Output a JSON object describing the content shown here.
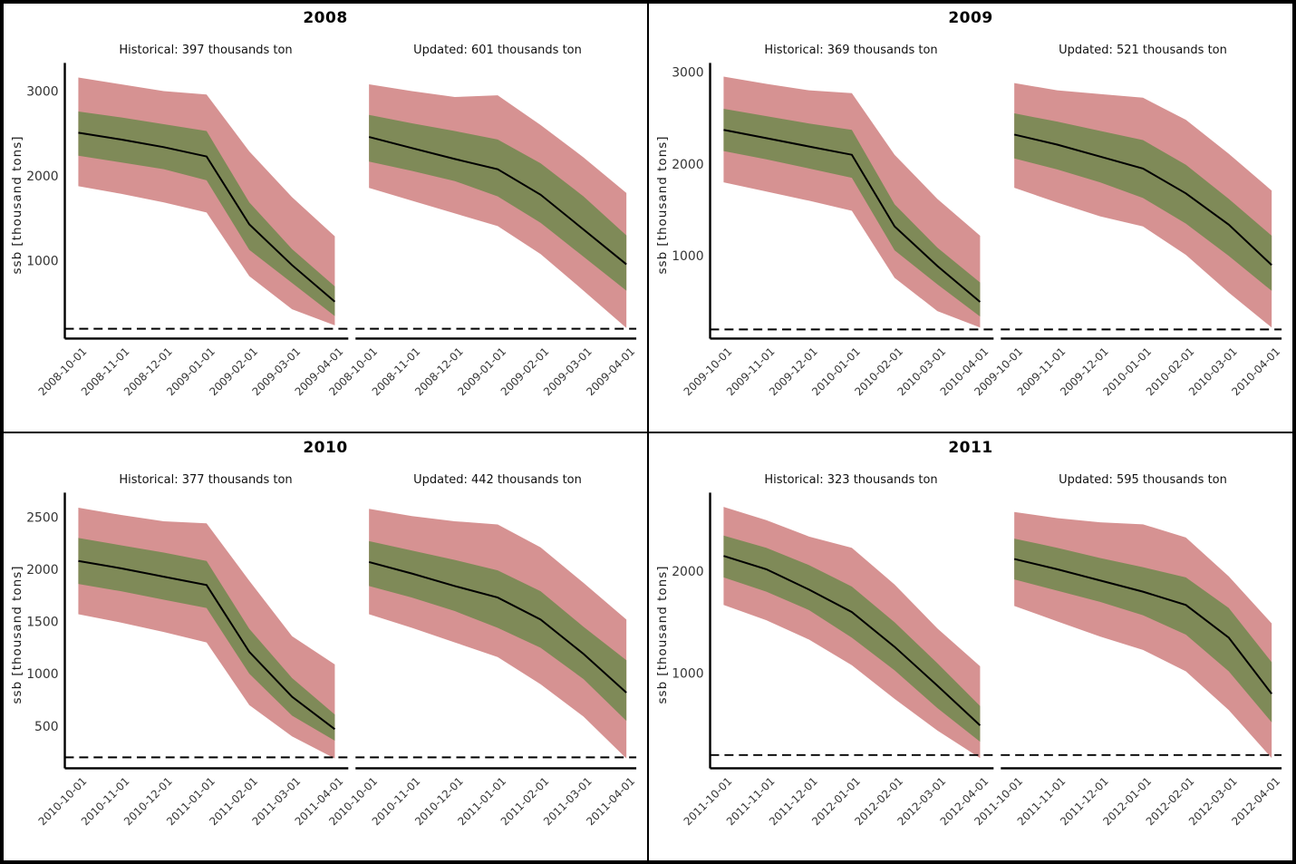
{
  "chart_data": {
    "type": "area",
    "description": "2x2 grid of seasonal ssb forecast fan charts, each year with Historical and Updated scenarios; black median line, inner olive credible band, outer pink credible band, dashed horizontal reference line",
    "ylabel": "ssb [thousand tons]",
    "legend_position": "none",
    "grid": false,
    "colors": {
      "outer_band": "#D69292",
      "inner_band": "#7F8A58",
      "median_line": "#000000",
      "reference_line": "#000000",
      "tick_text": "#333333",
      "title_text": "#000000"
    },
    "reference_line_value": 200,
    "panels": [
      {
        "year": "2008",
        "yticks": [
          1000,
          2000,
          3000
        ],
        "ylim": [
          85,
          3290
        ],
        "charts": [
          {
            "title": "Historical: 397 thousands ton",
            "x": [
              "2008-10-01",
              "2008-11-01",
              "2008-12-01",
              "2009-01-01",
              "2009-02-01",
              "2009-03-01",
              "2009-04-01"
            ],
            "median": [
              2510,
              2430,
              2340,
              2230,
              1430,
              950,
              520
            ],
            "inner_hi": [
              2760,
              2690,
              2610,
              2530,
              1690,
              1140,
              700
            ],
            "inner_lo": [
              2240,
              2160,
              2080,
              1950,
              1130,
              740,
              350
            ],
            "outer_hi": [
              3160,
              3080,
              3000,
              2960,
              2290,
              1750,
              1290
            ],
            "outer_lo": [
              1880,
              1790,
              1690,
              1570,
              820,
              430,
              240
            ]
          },
          {
            "title": "Updated: 601 thousands ton",
            "x": [
              "2008-10-01",
              "2008-11-01",
              "2008-12-01",
              "2009-01-01",
              "2009-02-01",
              "2009-03-01",
              "2009-04-01"
            ],
            "median": [
              2460,
              2330,
              2200,
              2080,
              1780,
              1370,
              960
            ],
            "inner_hi": [
              2720,
              2620,
              2530,
              2430,
              2150,
              1760,
              1300
            ],
            "inner_lo": [
              2170,
              2060,
              1940,
              1760,
              1450,
              1050,
              650
            ],
            "outer_hi": [
              3080,
              3000,
              2930,
              2950,
              2600,
              2220,
              1800
            ],
            "outer_lo": [
              1860,
              1710,
              1560,
              1410,
              1080,
              650,
              210
            ]
          }
        ]
      },
      {
        "year": "2009",
        "yticks": [
          1000,
          2000,
          3000
        ],
        "ylim": [
          100,
          3060
        ],
        "charts": [
          {
            "title": "Historical: 369 thousands ton",
            "x": [
              "2009-10-01",
              "2009-11-01",
              "2009-12-01",
              "2010-01-01",
              "2010-02-01",
              "2010-03-01",
              "2010-04-01"
            ],
            "median": [
              2370,
              2280,
              2190,
              2100,
              1320,
              890,
              500
            ],
            "inner_hi": [
              2600,
              2520,
              2440,
              2370,
              1560,
              1090,
              710
            ],
            "inner_lo": [
              2140,
              2050,
              1950,
              1850,
              1060,
              690,
              340
            ],
            "outer_hi": [
              2950,
              2870,
              2800,
              2770,
              2100,
              1620,
              1220
            ],
            "outer_lo": [
              1800,
              1700,
              1600,
              1490,
              760,
              400,
              220
            ]
          },
          {
            "title": "Updated: 521 thousands ton",
            "x": [
              "2009-10-01",
              "2009-11-01",
              "2009-12-01",
              "2010-01-01",
              "2010-02-01",
              "2010-03-01",
              "2010-04-01"
            ],
            "median": [
              2320,
              2210,
              2080,
              1950,
              1680,
              1340,
              900
            ],
            "inner_hi": [
              2550,
              2460,
              2360,
              2260,
              1990,
              1620,
              1220
            ],
            "inner_lo": [
              2060,
              1940,
              1800,
              1630,
              1350,
              1000,
              620
            ],
            "outer_hi": [
              2880,
              2800,
              2760,
              2720,
              2480,
              2110,
              1710
            ],
            "outer_lo": [
              1740,
              1580,
              1430,
              1320,
              1010,
              600,
              220
            ]
          }
        ]
      },
      {
        "year": "2010",
        "yticks": [
          500,
          1000,
          1500,
          2000,
          2500
        ],
        "ylim": [
          95,
          2700
        ],
        "charts": [
          {
            "title": "Historical: 377 thousands ton",
            "x": [
              "2010-10-01",
              "2010-11-01",
              "2010-12-01",
              "2011-01-01",
              "2011-02-01",
              "2011-03-01",
              "2011-04-01"
            ],
            "median": [
              2080,
              2010,
              1930,
              1850,
              1210,
              780,
              470
            ],
            "inner_hi": [
              2300,
              2230,
              2160,
              2080,
              1430,
              960,
              610
            ],
            "inner_lo": [
              1860,
              1790,
              1710,
              1630,
              1000,
              600,
              360
            ],
            "outer_hi": [
              2590,
              2520,
              2460,
              2440,
              1890,
              1360,
              1090
            ],
            "outer_lo": [
              1570,
              1490,
              1400,
              1300,
              700,
              400,
              190
            ]
          },
          {
            "title": "Updated: 442 thousands ton",
            "x": [
              "2010-10-01",
              "2010-11-01",
              "2010-12-01",
              "2011-01-01",
              "2011-02-01",
              "2011-03-01",
              "2011-04-01"
            ],
            "median": [
              2070,
              1960,
              1840,
              1730,
              1520,
              1190,
              820
            ],
            "inner_hi": [
              2270,
              2180,
              2090,
              1990,
              1790,
              1450,
              1130
            ],
            "inner_lo": [
              1840,
              1730,
              1600,
              1440,
              1250,
              950,
              550
            ],
            "outer_hi": [
              2580,
              2510,
              2460,
              2430,
              2210,
              1870,
              1520
            ],
            "outer_lo": [
              1570,
              1440,
              1300,
              1160,
              900,
              590,
              190
            ]
          }
        ]
      },
      {
        "year": "2011",
        "yticks": [
          1000,
          2000
        ],
        "ylim": [
          70,
          2735
        ],
        "charts": [
          {
            "title": "Historical: 323 thousands ton",
            "x": [
              "2011-10-01",
              "2011-11-01",
              "2011-12-01",
              "2012-01-01",
              "2012-02-01",
              "2012-03-01",
              "2012-04-01"
            ],
            "median": [
              2150,
              2020,
              1820,
              1600,
              1260,
              880,
              490
            ],
            "inner_hi": [
              2350,
              2230,
              2060,
              1850,
              1500,
              1100,
              680
            ],
            "inner_lo": [
              1940,
              1800,
              1620,
              1350,
              1030,
              660,
              330
            ],
            "outer_hi": [
              2630,
              2500,
              2340,
              2230,
              1870,
              1440,
              1070
            ],
            "outer_lo": [
              1670,
              1520,
              1330,
              1080,
              750,
              440,
              170
            ]
          },
          {
            "title": "Updated: 595 thousands ton",
            "x": [
              "2011-10-01",
              "2011-11-01",
              "2011-12-01",
              "2012-01-01",
              "2012-02-01",
              "2012-03-01",
              "2012-04-01"
            ],
            "median": [
              2120,
              2020,
              1910,
              1800,
              1670,
              1350,
              800
            ],
            "inner_hi": [
              2320,
              2230,
              2130,
              2040,
              1940,
              1640,
              1110
            ],
            "inner_lo": [
              1920,
              1810,
              1700,
              1570,
              1380,
              1020,
              520
            ],
            "outer_hi": [
              2580,
              2520,
              2480,
              2460,
              2330,
              1950,
              1490
            ],
            "outer_lo": [
              1660,
              1510,
              1360,
              1230,
              1020,
              640,
              170
            ]
          }
        ]
      }
    ]
  }
}
